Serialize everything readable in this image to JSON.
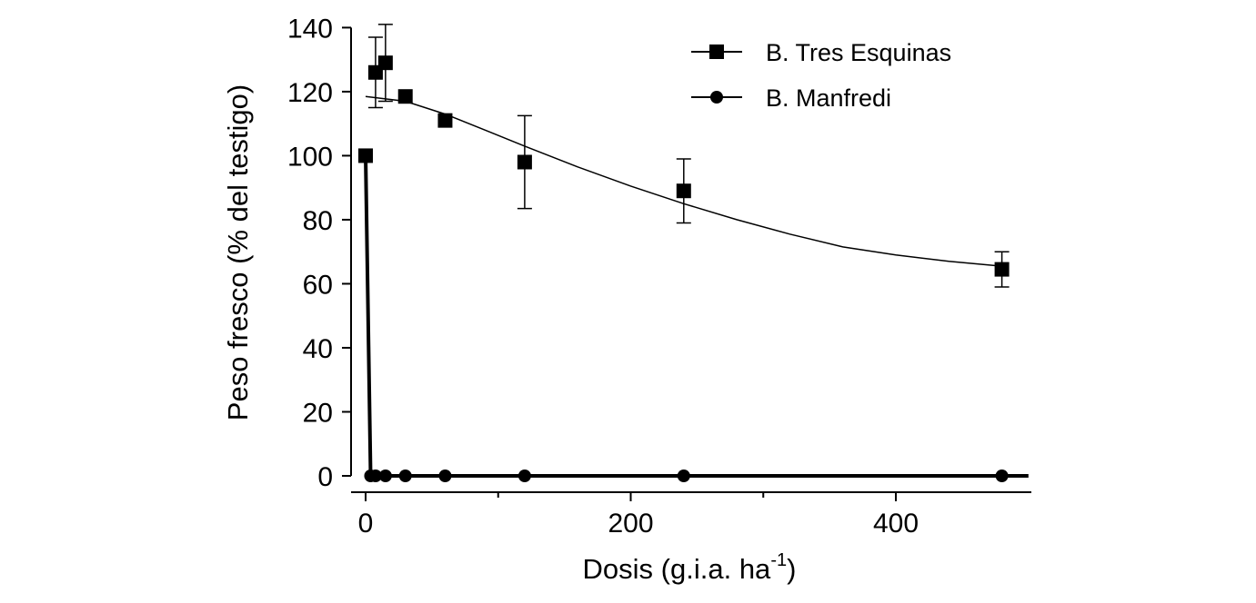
{
  "chart_data": {
    "type": "scatter",
    "title": "",
    "xlabel": "Dosis (g.i.a. ha",
    "xlabel_sup": "-1",
    "xlabel_close": ")",
    "ylabel": "Peso fresco (% del testigo)",
    "xlim": [
      -15,
      500
    ],
    "ylim": [
      0,
      140
    ],
    "xticks": [
      0,
      200,
      400
    ],
    "yticks": [
      0,
      20,
      40,
      60,
      80,
      100,
      120,
      140
    ],
    "xtick_labels": [
      "0",
      "200",
      "400"
    ],
    "ytick_labels": [
      "0",
      "20",
      "40",
      "60",
      "80",
      "100",
      "120",
      "140"
    ],
    "grid": false,
    "legend_position": "top-right",
    "series": [
      {
        "name": "B. Tres Esquinas",
        "marker": "square",
        "color": "#000000",
        "points": [
          {
            "x": 0,
            "y": 100
          },
          {
            "x": 7.5,
            "y": 126,
            "err": 11
          },
          {
            "x": 15,
            "y": 129,
            "err": 12
          },
          {
            "x": 30,
            "y": 118.5
          },
          {
            "x": 60,
            "y": 111
          },
          {
            "x": 120,
            "y": 98,
            "err": 14.5
          },
          {
            "x": 240,
            "y": 89,
            "err": 10
          },
          {
            "x": 480,
            "y": 64.5,
            "err": 5.5
          }
        ],
        "fit_curve": [
          {
            "x": 0,
            "y": 118.5
          },
          {
            "x": 30,
            "y": 117
          },
          {
            "x": 60,
            "y": 113
          },
          {
            "x": 90,
            "y": 108
          },
          {
            "x": 120,
            "y": 103
          },
          {
            "x": 160,
            "y": 96.5
          },
          {
            "x": 200,
            "y": 90.5
          },
          {
            "x": 240,
            "y": 85
          },
          {
            "x": 280,
            "y": 80
          },
          {
            "x": 320,
            "y": 75.5
          },
          {
            "x": 360,
            "y": 71.5
          },
          {
            "x": 400,
            "y": 69
          },
          {
            "x": 440,
            "y": 67
          },
          {
            "x": 480,
            "y": 65.5
          }
        ]
      },
      {
        "name": "B. Manfredi",
        "marker": "circle",
        "color": "#000000",
        "points": [
          {
            "x": 0,
            "y": 100
          },
          {
            "x": 3.75,
            "y": 0
          },
          {
            "x": 7.5,
            "y": 0
          },
          {
            "x": 15,
            "y": 0
          },
          {
            "x": 30,
            "y": 0
          },
          {
            "x": 60,
            "y": 0
          },
          {
            "x": 120,
            "y": 0
          },
          {
            "x": 240,
            "y": 0
          },
          {
            "x": 480,
            "y": 0
          }
        ],
        "fit_curve": [
          {
            "x": 0,
            "y": 100
          },
          {
            "x": 3.75,
            "y": 0
          },
          {
            "x": 500,
            "y": 0
          }
        ]
      }
    ]
  }
}
